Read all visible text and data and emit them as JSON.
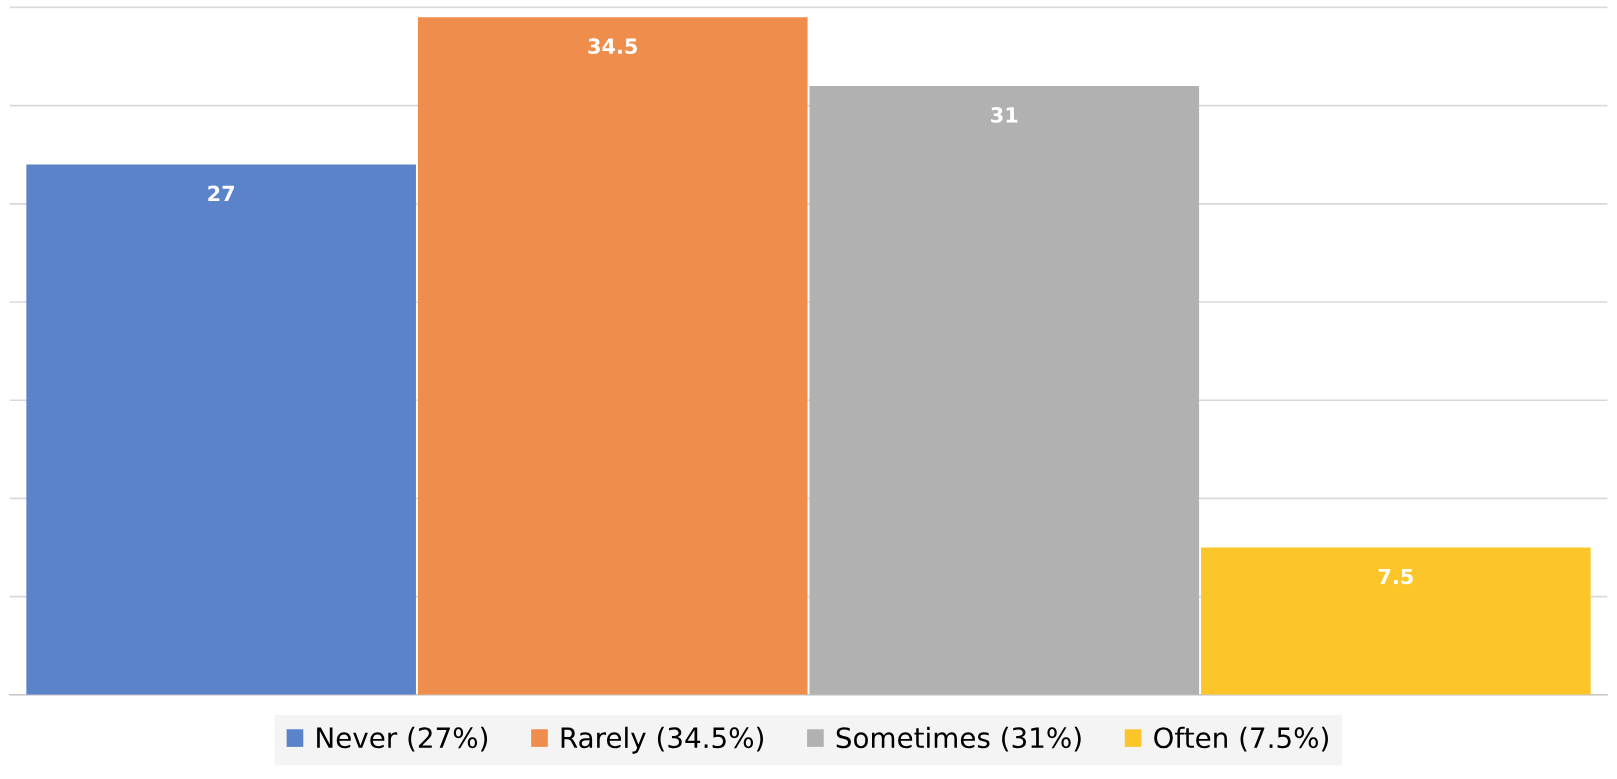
{
  "chart_data": {
    "type": "bar",
    "categories": [
      null
    ],
    "series": [
      {
        "name": "Never (27%)",
        "color": "#5b83c9",
        "values": [
          27
        ]
      },
      {
        "name": "Rarely (34.5%)",
        "color": "#ee8d4c",
        "values": [
          34.5
        ]
      },
      {
        "name": "Sometimes (31%)",
        "color": "#b1b1b1",
        "values": [
          31
        ]
      },
      {
        "name": "Often (7.5%)",
        "color": "#fcc62a",
        "values": [
          7.5
        ]
      }
    ],
    "ylim": [
      0,
      35.1
    ],
    "yticks": [
      {
        "value": 0,
        "label": null
      },
      {
        "value": 5,
        "label": null
      },
      {
        "value": 10,
        "label": null
      },
      {
        "value": 15,
        "label": null
      },
      {
        "value": 20,
        "label": null
      },
      {
        "value": 25,
        "label": null
      },
      {
        "value": 30,
        "label": null
      },
      {
        "value": 35,
        "label": null
      }
    ],
    "grid": "y",
    "legend": "bottom",
    "data_labels": true
  }
}
